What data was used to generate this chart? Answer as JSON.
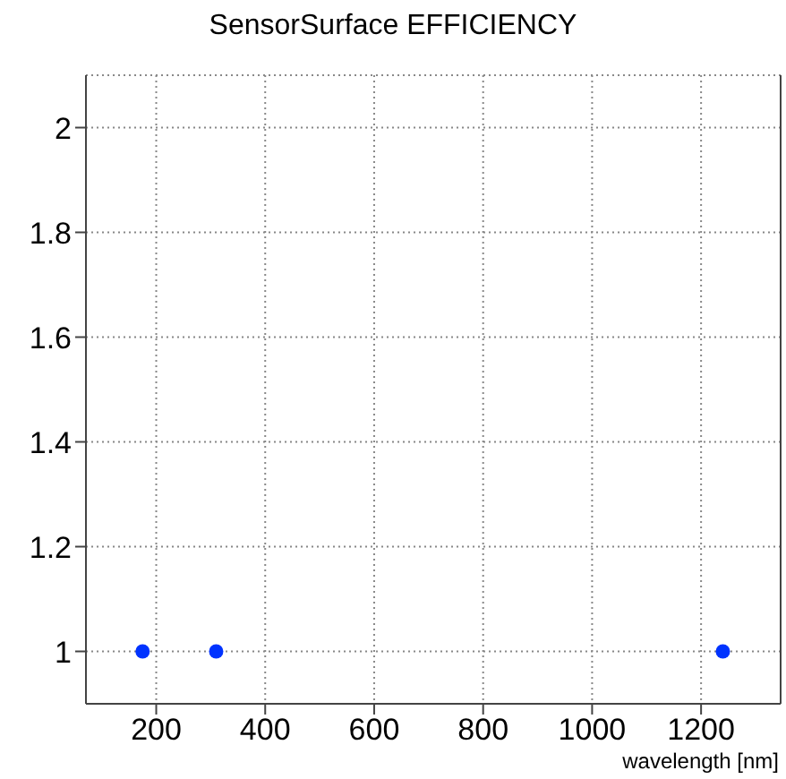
{
  "chart_data": {
    "type": "scatter",
    "title": "SensorSurface EFFICIENCY",
    "xlabel": "wavelength [nm]",
    "x": [
      175,
      310,
      1240
    ],
    "series": [
      {
        "color": "#0033ff",
        "values": [
          1,
          1,
          1
        ]
      }
    ],
    "xlim": [
      71,
      1346
    ],
    "xticks": [
      200,
      400,
      600,
      800,
      1000,
      1200
    ],
    "ylim": [
      0.9,
      2.1
    ],
    "yticks": [
      1,
      1.2,
      1.4,
      1.6,
      1.8,
      2
    ],
    "grid": true,
    "marker": "circle"
  }
}
